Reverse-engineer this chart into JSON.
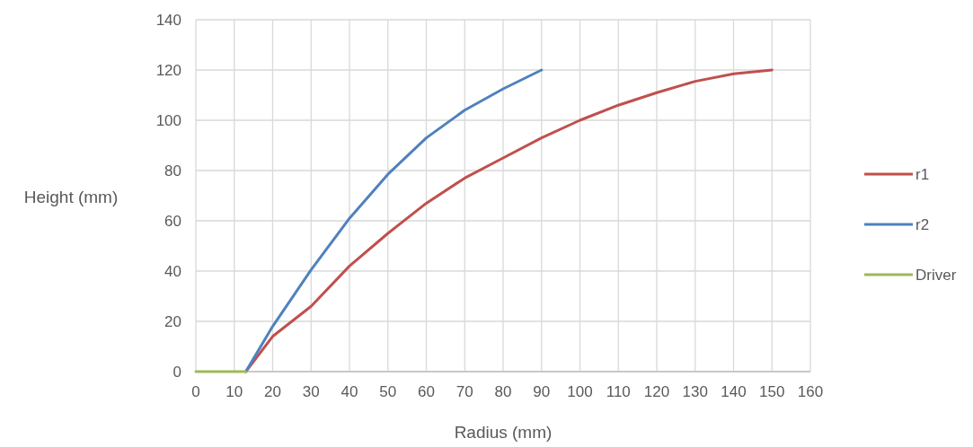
{
  "chart_data": {
    "type": "line",
    "xlabel": "Radius (mm)",
    "ylabel": "Height (mm)",
    "xlim": [
      0,
      160
    ],
    "xticks": [
      0,
      10,
      20,
      30,
      40,
      50,
      60,
      70,
      80,
      90,
      100,
      110,
      120,
      130,
      140,
      150,
      160
    ],
    "ylim": [
      0,
      140
    ],
    "yticks": [
      0,
      20,
      40,
      60,
      80,
      100,
      120,
      140
    ],
    "grid": true,
    "legend": "right",
    "marker": "none",
    "line_style": "solid",
    "series": [
      {
        "name": "r1",
        "color": "#c0504d",
        "x": [
          13,
          20,
          30,
          40,
          50,
          60,
          70,
          80,
          90,
          100,
          110,
          120,
          130,
          140,
          150
        ],
        "values": [
          0,
          14,
          26,
          42,
          55,
          67,
          77,
          85,
          93,
          100,
          106,
          111,
          115.5,
          118.5,
          120
        ]
      },
      {
        "name": "r2",
        "color": "#4f81bd",
        "x": [
          13,
          20,
          30,
          40,
          50,
          60,
          70,
          80,
          90
        ],
        "values": [
          0,
          18,
          40.5,
          61,
          78.5,
          93,
          104,
          112.5,
          120
        ]
      },
      {
        "name": "Driver",
        "color": "#9bbb59",
        "x": [
          0,
          13
        ],
        "values": [
          0,
          0
        ]
      }
    ]
  }
}
